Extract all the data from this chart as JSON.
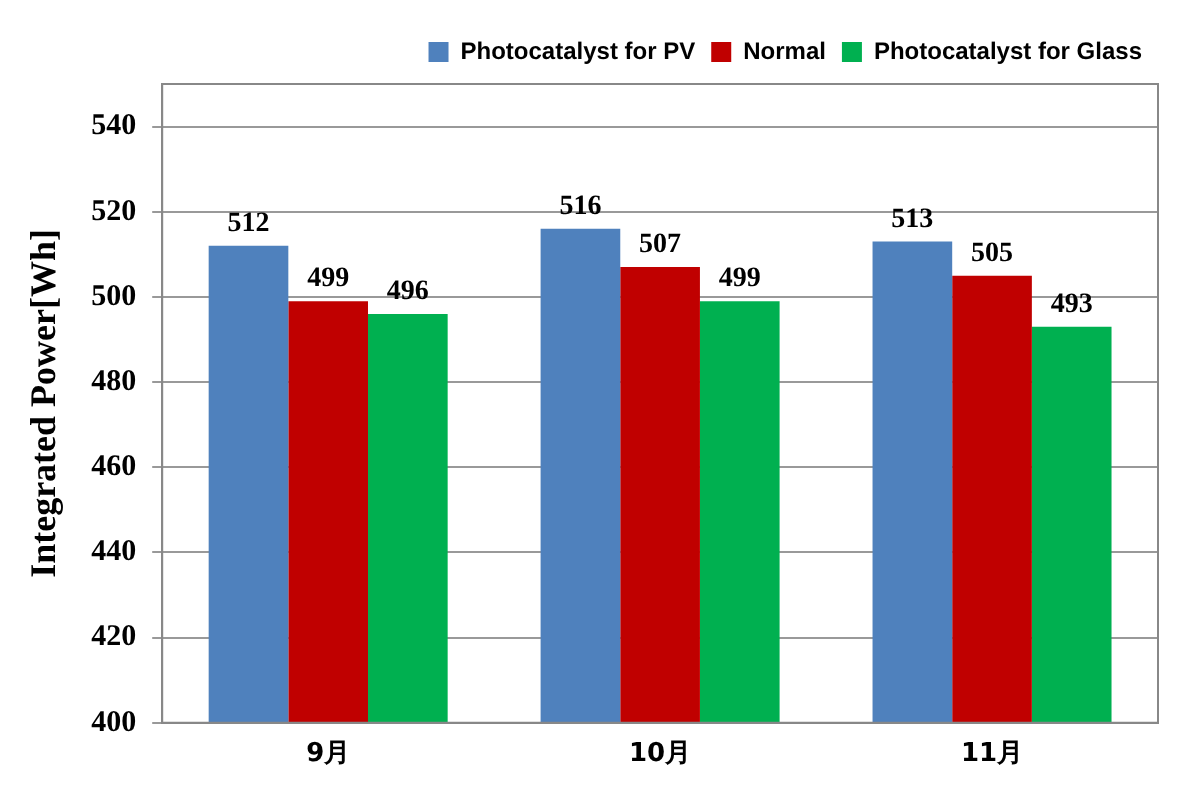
{
  "chart_data": {
    "type": "bar",
    "ylabel": "Integrated Power[Wh]",
    "categories": [
      "9月",
      "10月",
      "11月"
    ],
    "series": [
      {
        "name": "Photocatalyst for PV",
        "color": "#4f81bd",
        "values": [
          512,
          516,
          513
        ]
      },
      {
        "name": "Normal",
        "color": "#c00000",
        "values": [
          499,
          507,
          505
        ]
      },
      {
        "name": "Photocatalyst for Glass",
        "color": "#00b050",
        "values": [
          496,
          499,
          493
        ]
      }
    ],
    "ylim": [
      400,
      550
    ],
    "yticks": [
      400,
      420,
      440,
      460,
      480,
      500,
      520,
      540
    ],
    "grid": "y",
    "legend": "top right",
    "data_labels": true
  }
}
